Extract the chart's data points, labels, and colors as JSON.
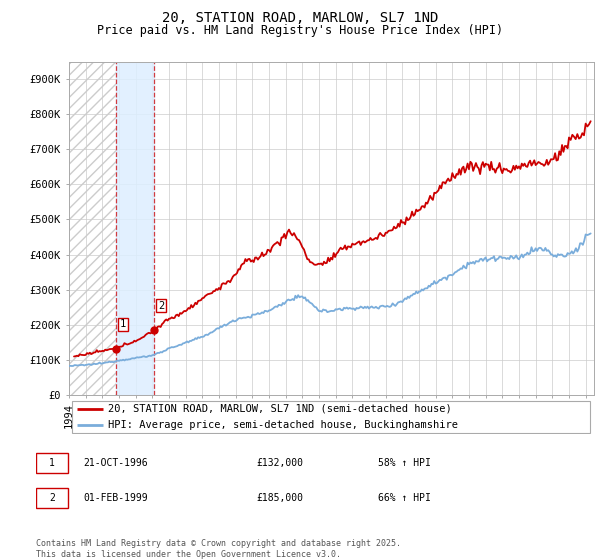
{
  "title": "20, STATION ROAD, MARLOW, SL7 1ND",
  "subtitle": "Price paid vs. HM Land Registry's House Price Index (HPI)",
  "ylabel_ticks": [
    "£0",
    "£100K",
    "£200K",
    "£300K",
    "£400K",
    "£500K",
    "£600K",
    "£700K",
    "£800K",
    "£900K"
  ],
  "ytick_values": [
    0,
    100000,
    200000,
    300000,
    400000,
    500000,
    600000,
    700000,
    800000,
    900000
  ],
  "ylim": [
    0,
    950000
  ],
  "xlim_start": 1994.0,
  "xlim_end": 2025.5,
  "transaction1_x": 1996.8,
  "transaction1_y": 132000,
  "transaction2_x": 1999.08,
  "transaction2_y": 185000,
  "transaction1_date": "21-OCT-1996",
  "transaction1_price": "£132,000",
  "transaction1_hpi": "58% ↑ HPI",
  "transaction2_date": "01-FEB-1999",
  "transaction2_price": "£185,000",
  "transaction2_hpi": "66% ↑ HPI",
  "legend_label_property": "20, STATION ROAD, MARLOW, SL7 1ND (semi-detached house)",
  "legend_label_hpi": "HPI: Average price, semi-detached house, Buckinghamshire",
  "footer": "Contains HM Land Registry data © Crown copyright and database right 2025.\nThis data is licensed under the Open Government Licence v3.0.",
  "property_color": "#cc0000",
  "hpi_color": "#7aaddb",
  "grid_color": "#cccccc",
  "hatch_color": "#cccccc",
  "shade_color": "#ddeeff",
  "title_fontsize": 10,
  "subtitle_fontsize": 8.5,
  "tick_fontsize": 7.5,
  "legend_fontsize": 7.5,
  "footer_fontsize": 6,
  "note_fontsize": 7,
  "hpi_anchors_x": [
    1994.0,
    1995.0,
    1996.0,
    1997.0,
    1998.0,
    1999.0,
    2000.0,
    2001.0,
    2002.0,
    2003.0,
    2004.0,
    2005.0,
    2006.0,
    2007.0,
    2007.75,
    2008.5,
    2009.0,
    2009.5,
    2010.0,
    2011.0,
    2012.0,
    2013.0,
    2013.5,
    2014.0,
    2015.0,
    2016.0,
    2017.0,
    2017.5,
    2018.0,
    2018.5,
    2019.0,
    2019.5,
    2020.0,
    2020.5,
    2021.0,
    2021.5,
    2022.0,
    2022.5,
    2023.0,
    2023.5,
    2024.0,
    2024.5,
    2025.0,
    2025.3
  ],
  "hpi_anchors_y": [
    82000,
    85000,
    90000,
    98000,
    105000,
    112000,
    132000,
    148000,
    165000,
    190000,
    215000,
    225000,
    240000,
    265000,
    280000,
    265000,
    240000,
    238000,
    242000,
    248000,
    248000,
    252000,
    258000,
    268000,
    295000,
    320000,
    345000,
    360000,
    375000,
    380000,
    385000,
    390000,
    390000,
    388000,
    390000,
    405000,
    415000,
    415000,
    400000,
    395000,
    400000,
    415000,
    450000,
    460000
  ],
  "prop_anchors_x": [
    1994.3,
    1995.0,
    1996.0,
    1996.8,
    1997.5,
    1998.5,
    1999.08,
    2000.0,
    2001.0,
    2002.0,
    2003.0,
    2003.5,
    2004.0,
    2004.5,
    2005.0,
    2005.5,
    2006.0,
    2006.5,
    2007.0,
    2007.3,
    2007.6,
    2007.9,
    2008.3,
    2008.8,
    2009.3,
    2009.8,
    2010.3,
    2011.0,
    2012.0,
    2013.0,
    2014.0,
    2014.5,
    2015.0,
    2015.5,
    2016.0,
    2016.5,
    2017.0,
    2017.5,
    2018.0,
    2018.5,
    2019.0,
    2019.5,
    2020.0,
    2020.5,
    2021.0,
    2021.5,
    2022.0,
    2022.5,
    2023.0,
    2023.5,
    2024.0,
    2024.3,
    2024.6,
    2025.0,
    2025.3
  ],
  "prop_anchors_y": [
    110000,
    115000,
    125000,
    132000,
    145000,
    165000,
    185000,
    215000,
    240000,
    275000,
    305000,
    320000,
    345000,
    375000,
    385000,
    395000,
    410000,
    435000,
    455000,
    462000,
    455000,
    430000,
    390000,
    370000,
    375000,
    390000,
    410000,
    430000,
    440000,
    460000,
    490000,
    510000,
    530000,
    545000,
    575000,
    600000,
    625000,
    640000,
    650000,
    650000,
    655000,
    645000,
    645000,
    640000,
    650000,
    660000,
    660000,
    655000,
    670000,
    690000,
    720000,
    740000,
    730000,
    760000,
    780000
  ]
}
